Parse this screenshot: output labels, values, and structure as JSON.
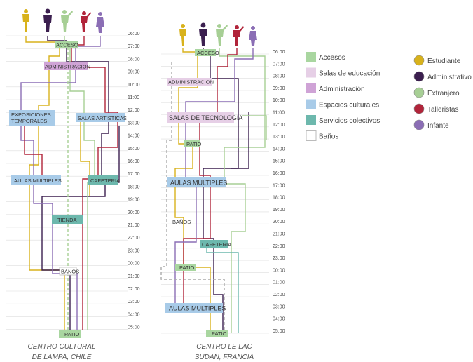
{
  "left_panel": {
    "caption_lines": [
      "CENTRO CULTURAL",
      "DE LAMPA, CHILE"
    ],
    "time_labels": [
      "06:00",
      "07:00",
      "08:00",
      "09:00",
      "10:00",
      "11:00",
      "12:00",
      "13:00",
      "14:00",
      "15:00",
      "16:00",
      "17:00",
      "18:00",
      "19:00",
      "20:00",
      "21:00",
      "22:00",
      "23:00",
      "00:00",
      "01:00",
      "02:00",
      "03:00",
      "04:00",
      "05:00"
    ],
    "spaces": [
      {
        "label": "ACCESO",
        "category": "accesos"
      },
      {
        "label": "ADMINISTRACION",
        "category": "administracion"
      },
      {
        "label": "EXPOSICIONES TEMPORALES",
        "category": "espacios_culturales"
      },
      {
        "label": "SALAS ARTISTICAS",
        "category": "espacios_culturales"
      },
      {
        "label": "AULAS MULTIPLES",
        "category": "espacios_culturales"
      },
      {
        "label": "CAFETERIA",
        "category": "servicios_colectivos"
      },
      {
        "label": "TIENDA",
        "category": "servicios_colectivos"
      },
      {
        "label": "BAÑOS",
        "category": "banos"
      },
      {
        "label": "PATIO",
        "category": "accesos"
      }
    ]
  },
  "right_panel": {
    "caption_lines": [
      "CENTRO LE LAC",
      "SUDAN, FRANCIA"
    ],
    "time_labels": [
      "06:00",
      "07:00",
      "08:00",
      "09:00",
      "10:00",
      "11:00",
      "12:00",
      "13:00",
      "14:00",
      "15:00",
      "16:00",
      "17:00",
      "18:00",
      "19:00",
      "20:00",
      "21:00",
      "22:00",
      "23:00",
      "00:00",
      "01:00",
      "02:00",
      "03:00",
      "04:00",
      "05:00"
    ],
    "spaces": [
      {
        "label": "ACCESO",
        "category": "accesos"
      },
      {
        "label": "ADMINISTRACION",
        "category": "administracion"
      },
      {
        "label": "SALAS DE TECNOLOGIA",
        "category": "salas_educacion"
      },
      {
        "label": "PATIO",
        "category": "accesos"
      },
      {
        "label": "AULAS MULTIPLES",
        "category": "espacios_culturales"
      },
      {
        "label": "BAÑOS",
        "category": "banos"
      },
      {
        "label": "CAFETERIA",
        "category": "servicios_colectivos"
      },
      {
        "label": "PATIO",
        "category": "accesos"
      },
      {
        "label": "AULAS MULTIPLES",
        "category": "espacios_culturales"
      },
      {
        "label": "PATIO",
        "category": "accesos"
      }
    ]
  },
  "legend_spaces": [
    {
      "label": "Accesos",
      "color": "#a9d6a0"
    },
    {
      "label": "Salas de educación",
      "color": "#e6cfe6"
    },
    {
      "label": "Administración",
      "color": "#cfa3d6"
    },
    {
      "label": "Espacios culturales",
      "color": "#a8cbe8"
    },
    {
      "label": "Servicios colectivos",
      "color": "#6db8ad"
    },
    {
      "label": "Baños",
      "color": "#ffffff"
    }
  ],
  "legend_users": [
    {
      "label": "Estudiante",
      "color": "#d8b21c"
    },
    {
      "label": "Administrativo",
      "color": "#3b1f4f"
    },
    {
      "label": "Extranjero",
      "color": "#a7cf95"
    },
    {
      "label": "Talleristas",
      "color": "#b1243a"
    },
    {
      "label": "Infante",
      "color": "#8b6eb5"
    }
  ],
  "style_colors": {
    "accesos": "#a9d6a0",
    "salas_educacion": "#e6cfe6",
    "administracion": "#cfa3d6",
    "espacios_culturales": "#a8cbe8",
    "servicios_colectivos": "#6db8ad",
    "banos_border": "#bbbbbb",
    "gridline": "#dddddd"
  }
}
